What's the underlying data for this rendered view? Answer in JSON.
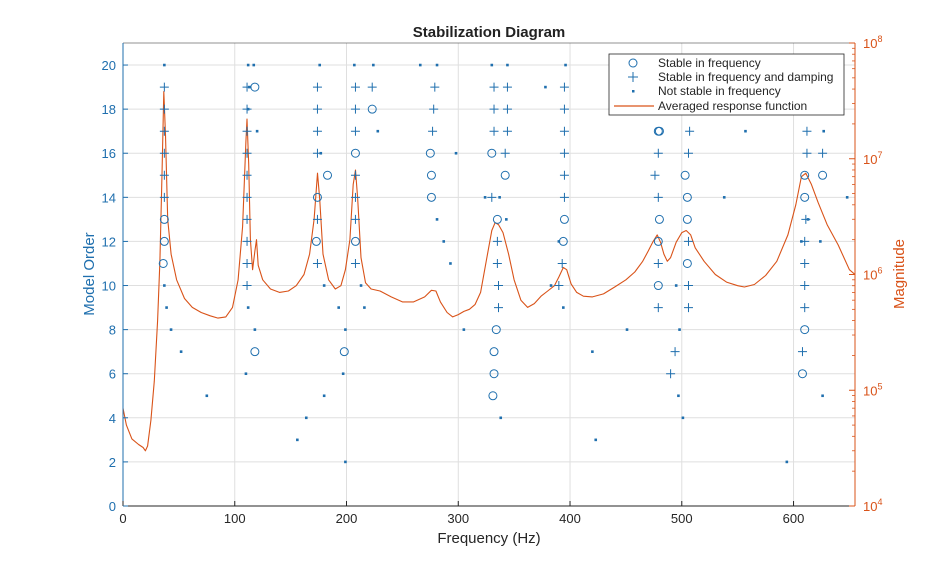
{
  "chart_data": {
    "type": "scatter",
    "title": "Stabilization Diagram",
    "xlabel": "Frequency (Hz)",
    "ylabel_left": "Model Order",
    "ylabel_right": "Magnitude",
    "xlim": [
      0,
      655
    ],
    "ylim_left": [
      0,
      21
    ],
    "ylim_right": [
      10000,
      100000000
    ],
    "right_axis_scale": "log",
    "xticks": [
      0,
      100,
      200,
      300,
      400,
      500,
      600
    ],
    "yticks_left": [
      0,
      2,
      4,
      6,
      8,
      10,
      12,
      14,
      16,
      18,
      20
    ],
    "yticks_right": [
      {
        "base": "10",
        "exp": "4",
        "value": 10000
      },
      {
        "base": "10",
        "exp": "5",
        "value": 100000
      },
      {
        "base": "10",
        "exp": "6",
        "value": 1000000
      },
      {
        "base": "10",
        "exp": "7",
        "value": 10000000
      },
      {
        "base": "10",
        "exp": "8",
        "value": 100000000
      }
    ],
    "grid": true,
    "legend_position": "top-right",
    "colors": {
      "markers": "#1f6fae",
      "response": "#d95319",
      "axis_left": "#1f6fae",
      "axis_right": "#d95319",
      "grid": "#dfdfdf"
    },
    "series": [
      {
        "name": "Stable in frequency",
        "marker": "circle",
        "points": [
          [
            36,
            11
          ],
          [
            37,
            12
          ],
          [
            37,
            13
          ],
          [
            118,
            7
          ],
          [
            118,
            19
          ],
          [
            173,
            12
          ],
          [
            174,
            14
          ],
          [
            183,
            15
          ],
          [
            198,
            7
          ],
          [
            208,
            12
          ],
          [
            208,
            16
          ],
          [
            223,
            18
          ],
          [
            276,
            14
          ],
          [
            276,
            15
          ],
          [
            275,
            16
          ],
          [
            331,
            5
          ],
          [
            332,
            6
          ],
          [
            332,
            7
          ],
          [
            334,
            8
          ],
          [
            335,
            13
          ],
          [
            330,
            16
          ],
          [
            342,
            15
          ],
          [
            394,
            12
          ],
          [
            395,
            13
          ],
          [
            479,
            10
          ],
          [
            479,
            12
          ],
          [
            480,
            13
          ],
          [
            479,
            17
          ],
          [
            480,
            17
          ],
          [
            505,
            11
          ],
          [
            505,
            13
          ],
          [
            505,
            14
          ],
          [
            503,
            15
          ],
          [
            608,
            6
          ],
          [
            610,
            8
          ],
          [
            610,
            14
          ],
          [
            610,
            15
          ],
          [
            626,
            15
          ]
        ]
      },
      {
        "name": "Stable in frequency and damping",
        "marker": "plus",
        "points": [
          [
            37,
            14
          ],
          [
            37,
            15
          ],
          [
            37,
            16
          ],
          [
            37,
            17
          ],
          [
            37,
            18
          ],
          [
            37,
            19
          ],
          [
            111,
            10
          ],
          [
            111,
            11
          ],
          [
            111,
            12
          ],
          [
            111,
            13
          ],
          [
            111,
            14
          ],
          [
            111,
            15
          ],
          [
            111,
            16
          ],
          [
            111,
            17
          ],
          [
            111,
            18
          ],
          [
            111,
            19
          ],
          [
            174,
            11
          ],
          [
            174,
            13
          ],
          [
            174,
            16
          ],
          [
            174,
            17
          ],
          [
            174,
            18
          ],
          [
            174,
            19
          ],
          [
            208,
            11
          ],
          [
            208,
            13
          ],
          [
            208,
            14
          ],
          [
            208,
            15
          ],
          [
            208,
            17
          ],
          [
            208,
            18
          ],
          [
            208,
            19
          ],
          [
            223,
            19
          ],
          [
            277,
            17
          ],
          [
            278,
            18
          ],
          [
            279,
            19
          ],
          [
            330,
            14
          ],
          [
            332,
            19
          ],
          [
            332,
            18
          ],
          [
            332,
            17
          ],
          [
            335,
            12
          ],
          [
            335,
            11
          ],
          [
            336,
            10
          ],
          [
            336,
            9
          ],
          [
            342,
            16
          ],
          [
            344,
            17
          ],
          [
            344,
            18
          ],
          [
            344,
            19
          ],
          [
            390,
            10
          ],
          [
            393,
            11
          ],
          [
            395,
            14
          ],
          [
            395,
            15
          ],
          [
            395,
            16
          ],
          [
            395,
            17
          ],
          [
            395,
            18
          ],
          [
            395,
            19
          ],
          [
            476,
            15
          ],
          [
            479,
            9
          ],
          [
            479,
            11
          ],
          [
            479,
            14
          ],
          [
            479,
            16
          ],
          [
            479,
            18
          ],
          [
            479,
            19
          ],
          [
            490,
            6
          ],
          [
            494,
            7
          ],
          [
            506,
            9
          ],
          [
            506,
            10
          ],
          [
            506,
            12
          ],
          [
            506,
            16
          ],
          [
            507,
            17
          ],
          [
            507,
            18
          ],
          [
            507,
            19
          ],
          [
            608,
            7
          ],
          [
            610,
            9
          ],
          [
            610,
            10
          ],
          [
            610,
            11
          ],
          [
            610,
            12
          ],
          [
            611,
            13
          ],
          [
            612,
            16
          ],
          [
            612,
            17
          ],
          [
            612,
            18
          ],
          [
            612,
            19
          ],
          [
            626,
            16
          ]
        ]
      },
      {
        "name": "Not stable in frequency",
        "marker": "point",
        "points": [
          [
            37,
            10
          ],
          [
            39,
            9
          ],
          [
            43,
            8
          ],
          [
            52,
            7
          ],
          [
            75,
            5
          ],
          [
            37,
            20
          ],
          [
            110,
            6
          ],
          [
            112,
            9
          ],
          [
            118,
            8
          ],
          [
            120,
            17
          ],
          [
            112,
            20
          ],
          [
            117,
            20
          ],
          [
            112,
            18
          ],
          [
            113,
            19
          ],
          [
            156,
            3
          ],
          [
            164,
            4
          ],
          [
            180,
            5
          ],
          [
            180,
            10
          ],
          [
            177,
            16
          ],
          [
            176,
            20
          ],
          [
            193,
            9
          ],
          [
            197,
            6
          ],
          [
            199,
            2
          ],
          [
            199,
            8
          ],
          [
            213,
            10
          ],
          [
            216,
            9
          ],
          [
            228,
            17
          ],
          [
            207,
            20
          ],
          [
            224,
            20
          ],
          [
            266,
            20
          ],
          [
            281,
            20
          ],
          [
            281,
            13
          ],
          [
            287,
            12
          ],
          [
            293,
            11
          ],
          [
            298,
            16
          ],
          [
            305,
            8
          ],
          [
            324,
            14
          ],
          [
            330,
            20
          ],
          [
            337,
            14
          ],
          [
            338,
            4
          ],
          [
            343,
            13
          ],
          [
            344,
            20
          ],
          [
            378,
            19
          ],
          [
            383,
            10
          ],
          [
            390,
            12
          ],
          [
            394,
            9
          ],
          [
            396,
            20
          ],
          [
            420,
            7
          ],
          [
            423,
            3
          ],
          [
            451,
            8
          ],
          [
            495,
            10
          ],
          [
            497,
            5
          ],
          [
            498,
            8
          ],
          [
            501,
            4
          ],
          [
            538,
            14
          ],
          [
            557,
            17
          ],
          [
            594,
            2
          ],
          [
            607,
            12
          ],
          [
            613,
            13
          ],
          [
            624,
            12
          ],
          [
            626,
            5
          ],
          [
            627,
            17
          ],
          [
            648,
            14
          ]
        ]
      },
      {
        "name": "Averaged response function",
        "marker": "line",
        "axis": "right",
        "points": [
          [
            0,
            70000
          ],
          [
            3,
            50000
          ],
          [
            8,
            38000
          ],
          [
            14,
            34000
          ],
          [
            18,
            32000
          ],
          [
            20,
            30000
          ],
          [
            22,
            33000
          ],
          [
            25,
            55000
          ],
          [
            28,
            120000
          ],
          [
            31,
            400000
          ],
          [
            33,
            1300000
          ],
          [
            35,
            8000000
          ],
          [
            36.5,
            38000000
          ],
          [
            38,
            16000000
          ],
          [
            40,
            3000000
          ],
          [
            43,
            1500000
          ],
          [
            48,
            900000
          ],
          [
            55,
            620000
          ],
          [
            62,
            520000
          ],
          [
            70,
            470000
          ],
          [
            78,
            440000
          ],
          [
            85,
            420000
          ],
          [
            92,
            430000
          ],
          [
            98,
            520000
          ],
          [
            103,
            900000
          ],
          [
            107,
            2600000
          ],
          [
            110,
            14000000
          ],
          [
            111,
            22000000
          ],
          [
            112.5,
            9000000
          ],
          [
            114,
            2000000
          ],
          [
            116,
            1100000
          ],
          [
            118,
            1600000
          ],
          [
            119.5,
            2000000
          ],
          [
            121,
            1200000
          ],
          [
            125,
            900000
          ],
          [
            132,
            750000
          ],
          [
            140,
            700000
          ],
          [
            148,
            720000
          ],
          [
            155,
            800000
          ],
          [
            162,
            1000000
          ],
          [
            167,
            1500000
          ],
          [
            171,
            3000000
          ],
          [
            174,
            7500000
          ],
          [
            176,
            4500000
          ],
          [
            179,
            1500000
          ],
          [
            184,
            900000
          ],
          [
            190,
            750000
          ],
          [
            195,
            800000
          ],
          [
            199,
            1100000
          ],
          [
            203,
            2000000
          ],
          [
            206,
            6000000
          ],
          [
            208,
            8000000
          ],
          [
            210,
            4500000
          ],
          [
            213,
            1400000
          ],
          [
            217,
            850000
          ],
          [
            222,
            750000
          ],
          [
            230,
            720000
          ],
          [
            240,
            640000
          ],
          [
            250,
            580000
          ],
          [
            260,
            580000
          ],
          [
            270,
            640000
          ],
          [
            276,
            730000
          ],
          [
            280,
            720000
          ],
          [
            284,
            580000
          ],
          [
            290,
            470000
          ],
          [
            295,
            430000
          ],
          [
            300,
            450000
          ],
          [
            305,
            480000
          ],
          [
            310,
            500000
          ],
          [
            315,
            550000
          ],
          [
            320,
            700000
          ],
          [
            325,
            1300000
          ],
          [
            330,
            2400000
          ],
          [
            333,
            2800000
          ],
          [
            336,
            2700000
          ],
          [
            340,
            2300000
          ],
          [
            345,
            1500000
          ],
          [
            350,
            900000
          ],
          [
            356,
            600000
          ],
          [
            362,
            520000
          ],
          [
            368,
            560000
          ],
          [
            374,
            650000
          ],
          [
            380,
            720000
          ],
          [
            386,
            800000
          ],
          [
            390,
            950000
          ],
          [
            394,
            1150000
          ],
          [
            397,
            1100000
          ],
          [
            401,
            830000
          ],
          [
            406,
            700000
          ],
          [
            412,
            650000
          ],
          [
            420,
            640000
          ],
          [
            430,
            680000
          ],
          [
            440,
            780000
          ],
          [
            450,
            900000
          ],
          [
            458,
            1050000
          ],
          [
            465,
            1300000
          ],
          [
            470,
            1600000
          ],
          [
            474,
            1900000
          ],
          [
            478,
            2200000
          ],
          [
            481,
            1900000
          ],
          [
            484,
            1500000
          ],
          [
            487,
            1300000
          ],
          [
            490,
            1400000
          ],
          [
            495,
            1900000
          ],
          [
            500,
            2300000
          ],
          [
            504,
            2400000
          ],
          [
            508,
            2200000
          ],
          [
            512,
            1700000
          ],
          [
            520,
            1300000
          ],
          [
            530,
            1000000
          ],
          [
            540,
            860000
          ],
          [
            550,
            800000
          ],
          [
            556,
            780000
          ],
          [
            565,
            820000
          ],
          [
            575,
            980000
          ],
          [
            585,
            1300000
          ],
          [
            595,
            2200000
          ],
          [
            602,
            4000000
          ],
          [
            607,
            7000000
          ],
          [
            611,
            7500000
          ],
          [
            616,
            6000000
          ],
          [
            622,
            4200000
          ],
          [
            630,
            2700000
          ],
          [
            640,
            1800000
          ],
          [
            650,
            1100000
          ],
          [
            655,
            1000000
          ]
        ]
      }
    ]
  }
}
